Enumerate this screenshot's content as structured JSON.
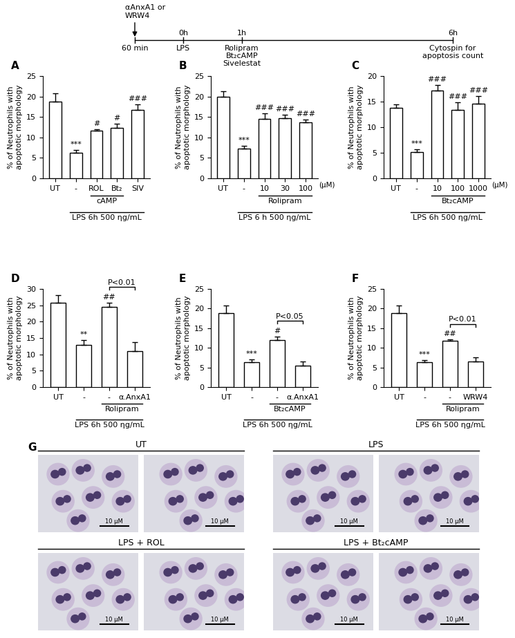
{
  "chart_data": [
    {
      "type": "bar",
      "panel": "A",
      "ylabel": "% of Neutrophils with\napoptotic morphology",
      "categories": [
        "UT",
        "-",
        "ROL",
        "Bt₂",
        "SIV"
      ],
      "values": [
        18.8,
        6.3,
        11.7,
        12.3,
        16.8
      ],
      "errors": [
        2.0,
        0.7,
        0.3,
        1.0,
        1.2
      ],
      "significance": [
        null,
        "***",
        "#",
        "#",
        "###"
      ],
      "groups": [
        {
          "label": "cAMP",
          "span": [
            2,
            3
          ]
        },
        {
          "label": "LPS 6h 500 ηg/mL",
          "span": [
            1,
            4
          ]
        }
      ],
      "color": "#ffffff",
      "ylim": [
        0,
        25
      ],
      "yticks": [
        0,
        5,
        10,
        15,
        20,
        25
      ]
    },
    {
      "type": "bar",
      "panel": "B",
      "ylabel": "% of Neutrophils with\napoptotic morphology",
      "categories": [
        "UT",
        "-",
        "10",
        "30",
        "100"
      ],
      "values": [
        20.0,
        7.2,
        14.6,
        14.7,
        13.7
      ],
      "errors": [
        1.2,
        0.8,
        1.3,
        0.8,
        0.6
      ],
      "significance": [
        null,
        "***",
        "###",
        "###",
        "###"
      ],
      "x_unit_label": "(μM)",
      "groups": [
        {
          "label": "Rolipram",
          "span": [
            2,
            4
          ]
        },
        {
          "label": "LPS 6 h 500 ηg/mL",
          "span": [
            1,
            4
          ]
        }
      ],
      "color": "#ffffff",
      "ylim": [
        0,
        25
      ],
      "yticks": [
        0,
        5,
        10,
        15,
        20,
        25
      ]
    },
    {
      "type": "bar",
      "panel": "C",
      "ylabel": "% of Neutrophils with\napoptotic morphology",
      "categories": [
        "UT",
        "-",
        "10",
        "100",
        "1000"
      ],
      "values": [
        13.8,
        5.1,
        17.2,
        13.4,
        14.6
      ],
      "errors": [
        0.7,
        0.6,
        1.0,
        1.5,
        1.5
      ],
      "significance": [
        null,
        "***",
        "###",
        "###",
        "###"
      ],
      "x_unit_label": "(μM)",
      "groups": [
        {
          "label": "Bt₂cAMP",
          "span": [
            2,
            4
          ]
        },
        {
          "label": "LPS 6h 500 ηg/mL",
          "span": [
            1,
            4
          ]
        }
      ],
      "color": "#ffffff",
      "ylim": [
        0,
        20
      ],
      "yticks": [
        0,
        5,
        10,
        15,
        20
      ]
    },
    {
      "type": "bar",
      "panel": "D",
      "ylabel": "% of Neutrophils with\napoptotic morphology",
      "categories": [
        "UT",
        "-",
        "-",
        "α.AnxA1"
      ],
      "values": [
        25.7,
        12.8,
        24.5,
        11.0
      ],
      "errors": [
        2.5,
        1.5,
        1.3,
        2.7
      ],
      "significance": [
        null,
        "**",
        "##",
        null
      ],
      "comparison": {
        "between": [
          2,
          3
        ],
        "label": "P<0.01"
      },
      "groups": [
        {
          "label": "Rolipram",
          "span": [
            2,
            3
          ]
        },
        {
          "label": "LPS 6h 500 ηg/mL",
          "span": [
            1,
            3
          ]
        }
      ],
      "color": "#ffffff",
      "ylim": [
        0,
        30
      ],
      "yticks": [
        0,
        5,
        10,
        15,
        20,
        25,
        30
      ]
    },
    {
      "type": "bar",
      "panel": "E",
      "ylabel": "% of Neutrophils with\napoptotic morphology",
      "categories": [
        "UT",
        "-",
        "-",
        "α.AnxA1"
      ],
      "values": [
        18.8,
        6.3,
        11.9,
        5.5
      ],
      "errors": [
        2.0,
        0.7,
        1.0,
        1.0
      ],
      "significance": [
        null,
        "***",
        "#",
        null
      ],
      "comparison": {
        "between": [
          2,
          3
        ],
        "label": "P<0.05"
      },
      "groups": [
        {
          "label": "Bt₂cAMP",
          "span": [
            2,
            3
          ]
        },
        {
          "label": "LPS 6h 500 ηg/mL",
          "span": [
            1,
            3
          ]
        }
      ],
      "color": "#ffffff",
      "ylim": [
        0,
        25
      ],
      "yticks": [
        0,
        5,
        10,
        15,
        20,
        25
      ]
    },
    {
      "type": "bar",
      "panel": "F",
      "ylabel": "% of Neutrophils with\napoptotic morphology",
      "categories": [
        "UT",
        "-",
        "-",
        "WRW4"
      ],
      "values": [
        18.8,
        6.3,
        11.8,
        6.5
      ],
      "errors": [
        2.0,
        0.6,
        0.3,
        1.1
      ],
      "significance": [
        null,
        "***",
        "##",
        null
      ],
      "comparison": {
        "between": [
          2,
          3
        ],
        "label": "P<0.01"
      },
      "groups": [
        {
          "label": "Rolipram",
          "span": [
            2,
            3
          ]
        },
        {
          "label": "LPS 6h 500 ηg/mL",
          "span": [
            1,
            3
          ]
        }
      ],
      "color": "#ffffff",
      "ylim": [
        0,
        25
      ],
      "yticks": [
        0,
        5,
        10,
        15,
        20,
        25
      ]
    }
  ],
  "timeline": {
    "pretreatment": [
      "αAnxA1 or",
      "WRW4"
    ],
    "points": [
      {
        "above": null,
        "below": [
          "60 min"
        ]
      },
      {
        "above": "0h",
        "below": [
          "LPS"
        ]
      },
      {
        "above": "1h",
        "below": [
          "Rolipram",
          "Bt₂cAMP",
          "Sivelestat"
        ]
      },
      {
        "above": "6h",
        "below": [
          "Cytospin for",
          "apoptosis count"
        ]
      }
    ]
  },
  "panel_g": {
    "panel": "G",
    "scale_bar": "10 μM",
    "groups": [
      {
        "title": "UT",
        "images": 2
      },
      {
        "title": "LPS",
        "images": 2
      },
      {
        "title": "LPS + ROL",
        "images": 2
      },
      {
        "title": "LPS + Bt₂cAMP",
        "images": 2
      }
    ]
  }
}
